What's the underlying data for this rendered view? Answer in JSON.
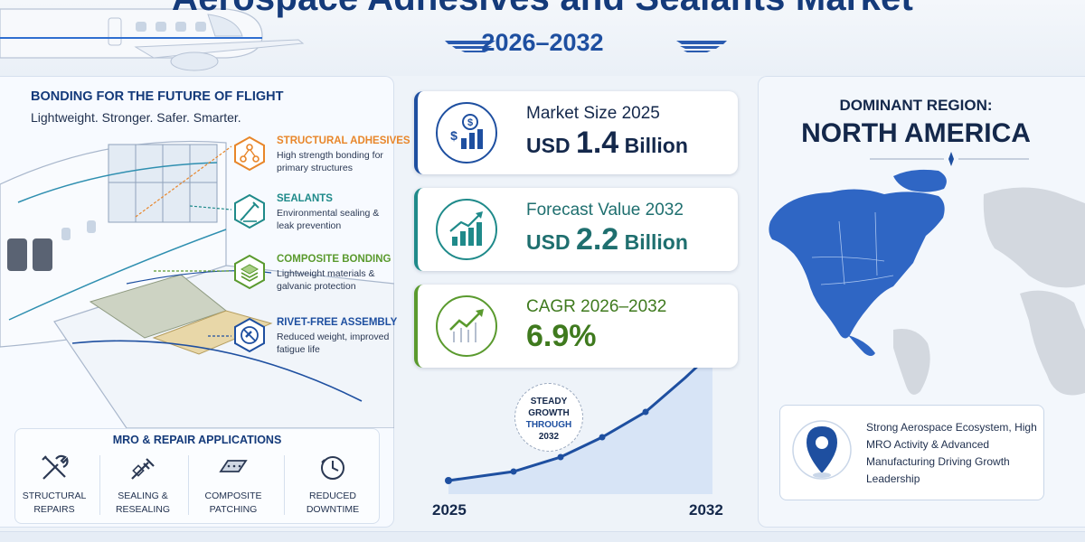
{
  "header": {
    "title": "Aerospace Adhesives and Sealants Market",
    "years": "2026–2032"
  },
  "left": {
    "title": "BONDING FOR THE FUTURE OF FLIGHT",
    "subtitle": "Lightweight. Stronger. Safer. Smarter.",
    "features": [
      {
        "name": "STRUCTURAL ADHESIVES",
        "desc": "High strength bonding for primary structures",
        "color": "#e8862a",
        "icon": "molecule-icon"
      },
      {
        "name": "SEALANTS",
        "desc": "Environmental sealing & leak prevention",
        "color": "#1f8a8a",
        "icon": "sealant-gun-icon"
      },
      {
        "name": "COMPOSITE BONDING",
        "desc": "Lightweight materials & galvanic protection",
        "color": "#5a9a2e",
        "icon": "layers-icon"
      },
      {
        "name": "RIVET-FREE ASSEMBLY",
        "desc": "Reduced weight, improved fatigue life",
        "color": "#1e4fa0",
        "icon": "no-rivet-icon"
      }
    ],
    "mro": {
      "title": "MRO & REPAIR APPLICATIONS",
      "items": [
        {
          "line1": "STRUCTURAL",
          "line2": "REPAIRS",
          "icon": "tools-icon"
        },
        {
          "line1": "SEALING &",
          "line2": "RESEALING",
          "icon": "sealant-gun-icon"
        },
        {
          "line1": "COMPOSITE",
          "line2": "PATCHING",
          "icon": "composite-patch-icon"
        },
        {
          "line1": "REDUCED",
          "line2": "DOWNTIME",
          "icon": "clock-icon"
        }
      ]
    }
  },
  "stats": [
    {
      "label": "Market Size 2025",
      "prefix": "USD ",
      "number": "1.4",
      "suffix": " Billion",
      "color": "#1e4fa0",
      "icon": "dollar-bar-chart-icon"
    },
    {
      "label": "Forecast Value 2032",
      "prefix": "USD ",
      "number": "2.2",
      "suffix": " Billion",
      "color": "#1f8a8a",
      "icon": "growth-chart-icon"
    },
    {
      "label": "CAGR 2026–2032",
      "prefix": "",
      "number": "6.9%",
      "suffix": "",
      "color": "#5a9a2e",
      "icon": "trend-line-icon"
    }
  ],
  "growth": {
    "badge_line1": "STEADY",
    "badge_line2": "GROWTH",
    "badge_line3": "THROUGH",
    "badge_line4": "2032",
    "start_year": "2025",
    "end_year": "2032"
  },
  "region": {
    "label": "DOMINANT REGION:",
    "name": "NORTH AMERICA",
    "description": "Strong Aerospace Ecosystem, High MRO Activity & Advanced Manufacturing Driving Growth Leadership",
    "highlight_color": "#2f66c4"
  }
}
